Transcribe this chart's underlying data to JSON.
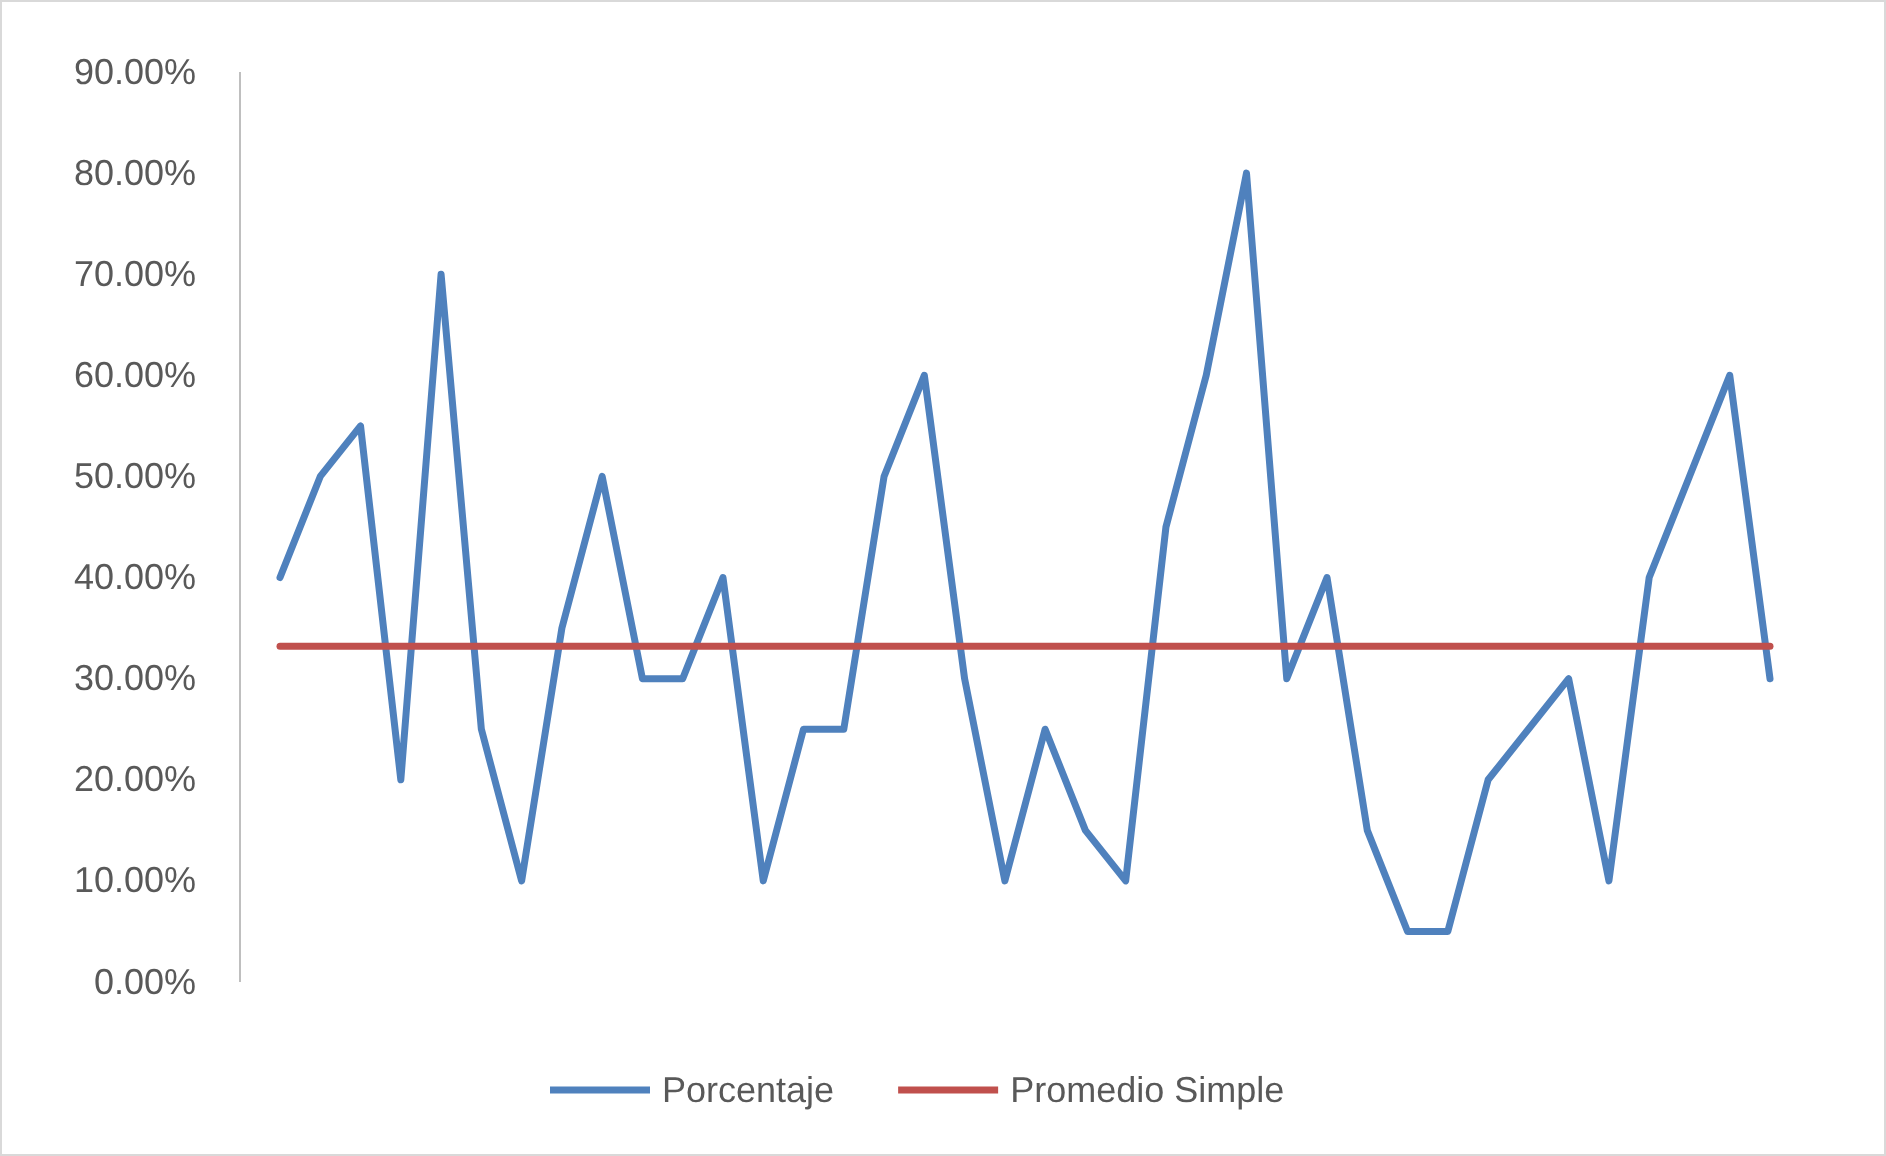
{
  "chart_data": {
    "type": "line",
    "categories": [
      null,
      null,
      null,
      null,
      null,
      null,
      null,
      null,
      null,
      null,
      null,
      null,
      null,
      null,
      null,
      null,
      null,
      null,
      null,
      null,
      null,
      null,
      null,
      null,
      null,
      null,
      null,
      null,
      null,
      null,
      null,
      null,
      null,
      null,
      null,
      null,
      null,
      null
    ],
    "series": [
      {
        "name": "Porcentaje",
        "color": "#4f81bd",
        "values": [
          40,
          50,
          55,
          20,
          70,
          25,
          10,
          35,
          50,
          30,
          30,
          40,
          10,
          25,
          25,
          50,
          60,
          30,
          10,
          25,
          15,
          10,
          45,
          60,
          80,
          30,
          40,
          15,
          5,
          5,
          20,
          25,
          30,
          10,
          40,
          50,
          60,
          30
        ]
      },
      {
        "name": "Promedio Simple",
        "color": "#c0504d",
        "values": [
          33.2,
          33.2,
          33.2,
          33.2,
          33.2,
          33.2,
          33.2,
          33.2,
          33.2,
          33.2,
          33.2,
          33.2,
          33.2,
          33.2,
          33.2,
          33.2,
          33.2,
          33.2,
          33.2,
          33.2,
          33.2,
          33.2,
          33.2,
          33.2,
          33.2,
          33.2,
          33.2,
          33.2,
          33.2,
          33.2,
          33.2,
          33.2,
          33.2,
          33.2,
          33.2,
          33.2,
          33.2,
          33.2
        ]
      }
    ],
    "ylim": [
      0,
      90
    ],
    "yticks": [
      {
        "value": 0,
        "label": "0.00%"
      },
      {
        "value": 10,
        "label": "10.00%"
      },
      {
        "value": 20,
        "label": "20.00%"
      },
      {
        "value": 30,
        "label": "30.00%"
      },
      {
        "value": 40,
        "label": "40.00%"
      },
      {
        "value": 50,
        "label": "50.00%"
      },
      {
        "value": 60,
        "label": "60.00%"
      },
      {
        "value": 70,
        "label": "70.00%"
      },
      {
        "value": 80,
        "label": "80.00%"
      },
      {
        "value": 90,
        "label": "90.00%"
      }
    ],
    "grid": false,
    "legend": "bottom",
    "marker": "none",
    "line_style": "solid"
  }
}
